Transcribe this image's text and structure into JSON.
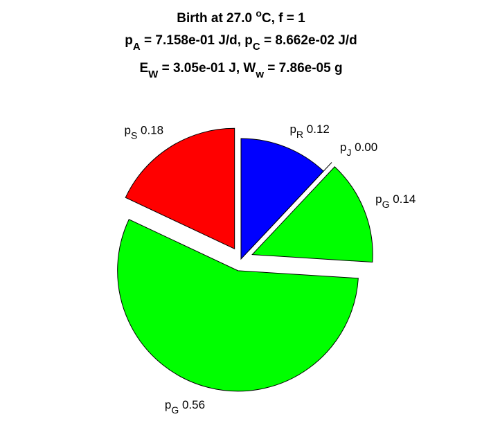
{
  "chart_data": {
    "type": "pie",
    "title": {
      "line1": {
        "main": "Birth at 27.0 ",
        "sup": "o",
        "tail": "C, f = 1"
      },
      "line2": {
        "a_base": "p",
        "a_sub": "A",
        "a_text": " = 7.158e-01 J/d, ",
        "c_base": "p",
        "c_sub": "C",
        "c_text": " = 8.662e-02 J/d"
      },
      "line3": {
        "e_base": "E",
        "e_sub": "W",
        "e_text": " = 3.05e-01 J, ",
        "w_base": "W",
        "w_sub": "w",
        "w_text": " = 7.86e-05 g"
      }
    },
    "slices": [
      {
        "base": "p",
        "sub": "R",
        "value_text": " 0.12",
        "value": 0.12,
        "color": "#0000ff",
        "exploded": false
      },
      {
        "base": "p",
        "sub": "J",
        "value_text": " 0.00",
        "value": 0.0,
        "color": "#ffffff",
        "exploded": true
      },
      {
        "base": "p",
        "sub": "G",
        "value_text": " 0.14",
        "value": 0.14,
        "color": "#00ff00",
        "exploded": true
      },
      {
        "base": "p",
        "sub": "G",
        "value_text": " 0.56",
        "value": 0.56,
        "color": "#00ff00",
        "exploded": true
      },
      {
        "base": "p",
        "sub": "S",
        "value_text": " 0.18",
        "value": 0.18,
        "color": "#ff0000",
        "exploded": true
      }
    ]
  }
}
